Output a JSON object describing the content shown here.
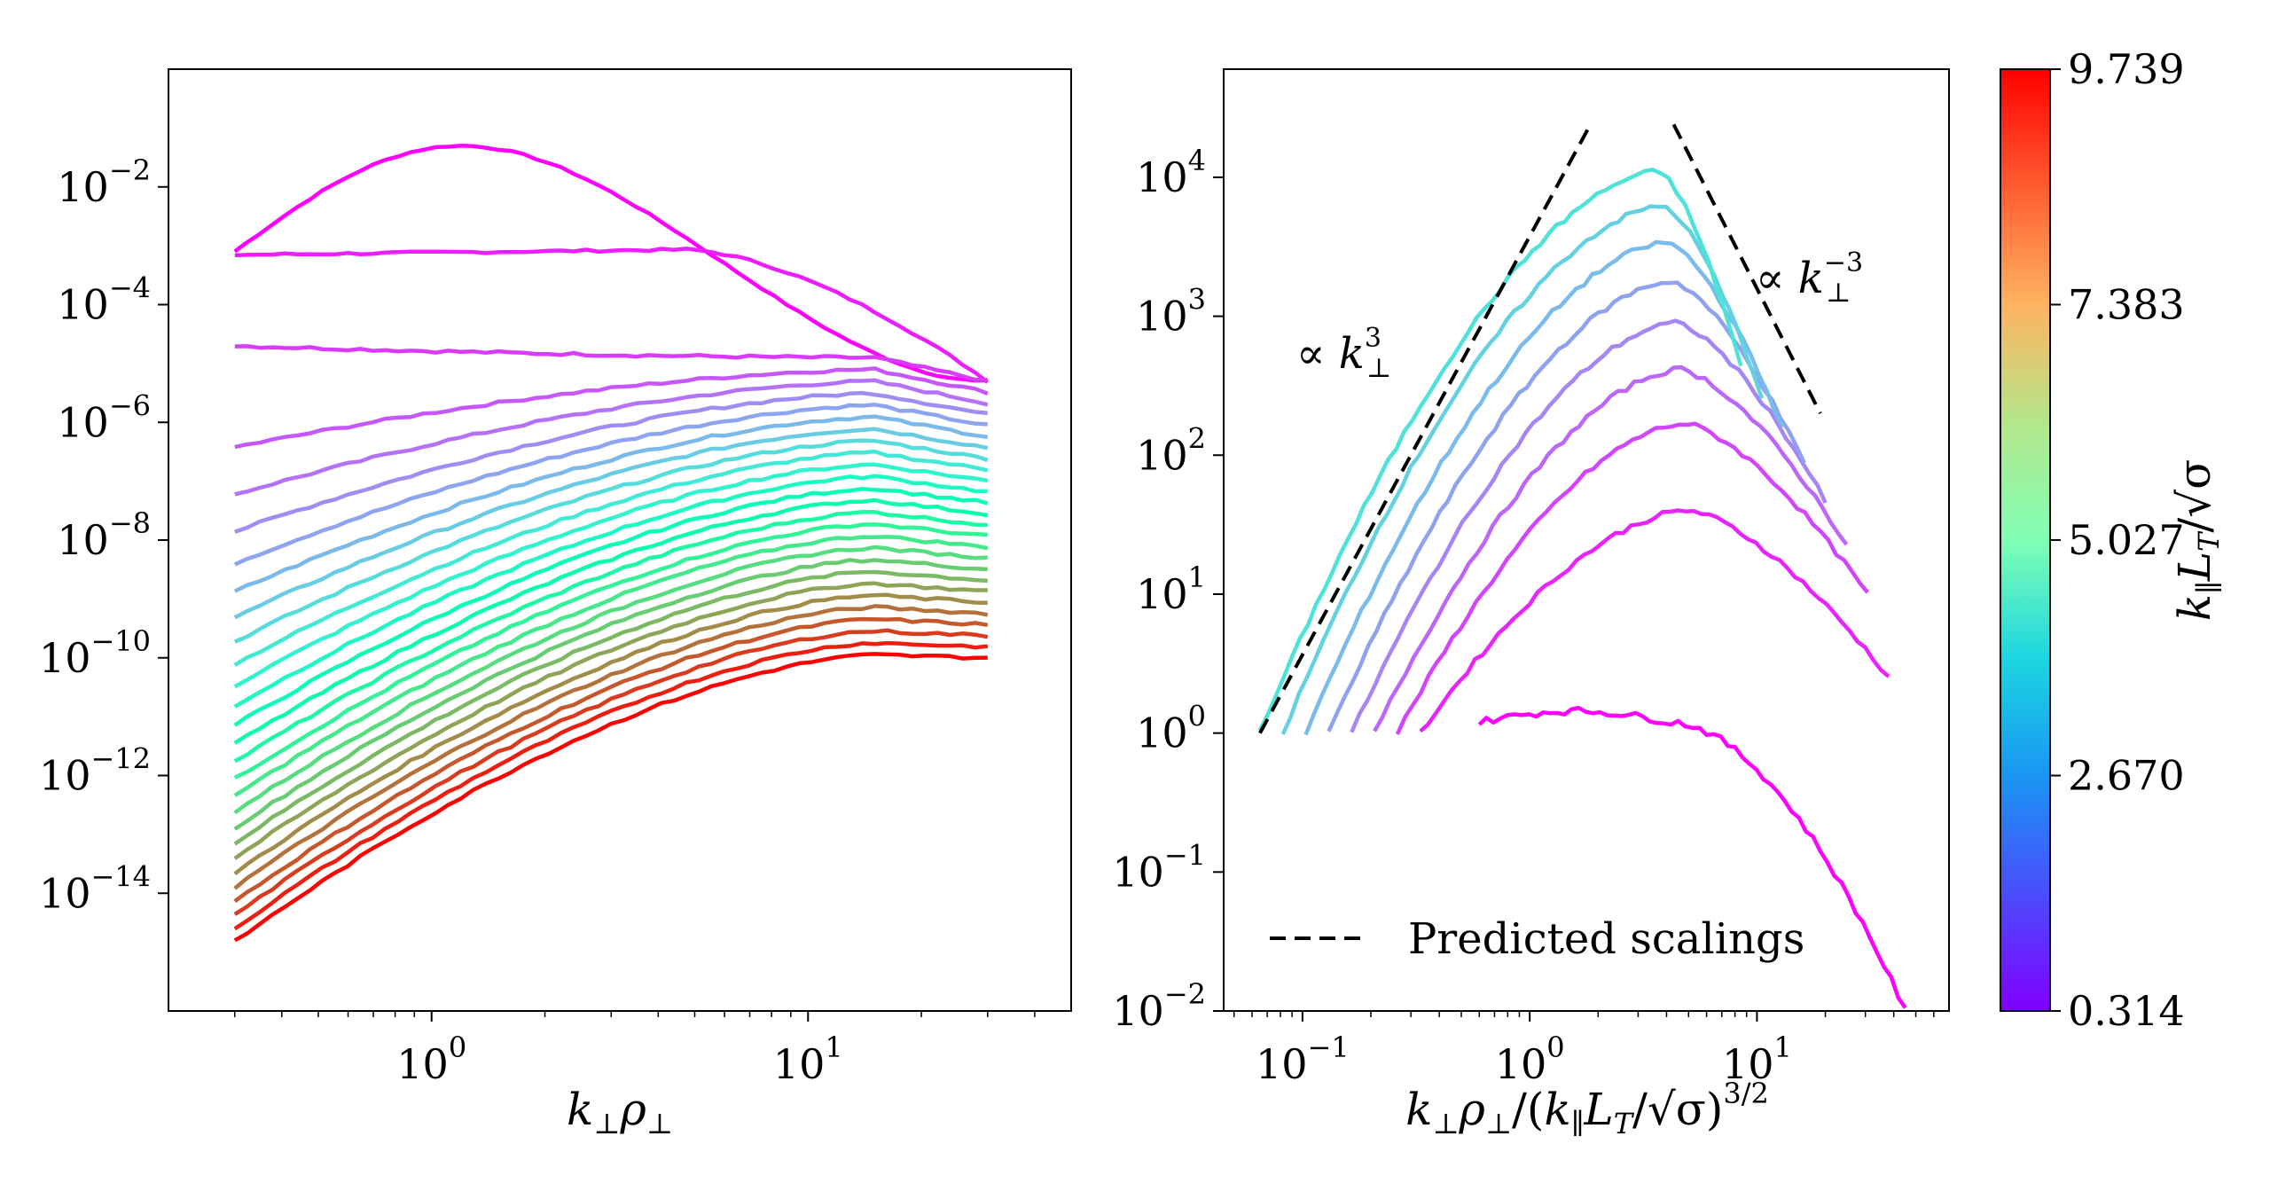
{
  "figure": {
    "background": "#ffffff",
    "line_colormap": "rainbow"
  },
  "chart_data": [
    {
      "type": "line",
      "panel": "left",
      "title": "",
      "xlabel": "k⊥ρ⊥",
      "ylabel": "",
      "xscale": "log",
      "yscale": "log",
      "xlim": [
        0.2,
        50
      ],
      "ylim": [
        1e-16,
        1
      ],
      "x_ticks": [
        {
          "value": 1,
          "base": "10",
          "exp": "0"
        },
        {
          "value": 10,
          "base": "10",
          "exp": "1"
        }
      ],
      "y_ticks": [
        {
          "value": 0.01,
          "base": "10",
          "exp": "−2"
        },
        {
          "value": 0.0001,
          "base": "10",
          "exp": "−4"
        },
        {
          "value": 1e-06,
          "base": "10",
          "exp": "−6"
        },
        {
          "value": 1e-08,
          "base": "10",
          "exp": "−8"
        },
        {
          "value": 1e-10,
          "base": "10",
          "exp": "−10"
        },
        {
          "value": 1e-12,
          "base": "10",
          "exp": "−12"
        },
        {
          "value": 1e-14,
          "base": "10",
          "exp": "−14"
        }
      ],
      "series_count": 28,
      "series_note": "One spectrum per k∥L_T/√σ value, colored by colorbar (0.314 purple → 9.739 red)",
      "series_reference": {
        "x_range": [
          0.3,
          30
        ],
        "first_series": {
          "start": 0.0008,
          "peak_x": 1.2,
          "peak": 0.05,
          "end": 5e-06
        },
        "second_series": {
          "start": 0.0007,
          "end": 5e-06
        },
        "third_series": {
          "start": 5e-06,
          "end": 5e-06
        },
        "last_series": {
          "start": 1.5e-15,
          "end": 1e-10
        }
      }
    },
    {
      "type": "line",
      "panel": "right",
      "title": "",
      "xlabel": "k⊥ρ⊥/(k∥L_T/√σ)^3/2",
      "ylabel": "",
      "xscale": "log",
      "yscale": "log",
      "xlim": [
        0.045,
        70
      ],
      "ylim": [
        0.01,
        60000
      ],
      "x_ticks": [
        {
          "value": 0.1,
          "base": "10",
          "exp": "−1"
        },
        {
          "value": 1,
          "base": "10",
          "exp": "0"
        },
        {
          "value": 10,
          "base": "10",
          "exp": "1"
        }
      ],
      "y_ticks": [
        {
          "value": 10000,
          "base": "10",
          "exp": "4"
        },
        {
          "value": 1000,
          "base": "10",
          "exp": "3"
        },
        {
          "value": 100,
          "base": "10",
          "exp": "2"
        },
        {
          "value": 10,
          "base": "10",
          "exp": "1"
        },
        {
          "value": 1,
          "base": "10",
          "exp": "0"
        },
        {
          "value": 0.1,
          "base": "10",
          "exp": "−1"
        },
        {
          "value": 0.01,
          "base": "10",
          "exp": "−2"
        }
      ],
      "series_count": 9,
      "series_note": "Rescaled spectra for lowest 9 k∥ values, colors from colorbar",
      "series_reference": {
        "lowest_k_series": {
          "x_range": [
            0.6,
            45
          ],
          "level": 1.2,
          "end": 0.01
        },
        "highest_k_series": {
          "x_range": [
            0.065,
            8.5
          ],
          "peak_x": 3.7,
          "peak": 11000
        }
      },
      "reference_lines": [
        {
          "name": "∝ k⊥³",
          "x": [
            0.065,
            1.85
          ],
          "y": [
            1,
            24000
          ],
          "style": "dashed",
          "color": "#000000"
        },
        {
          "name": "∝ k⊥⁻³",
          "x": [
            4.3,
            19
          ],
          "y": [
            24000,
            200
          ],
          "style": "dashed",
          "color": "#000000"
        }
      ],
      "annotations": {
        "slope_pos": {
          "prefix": "∝ ",
          "base": "k",
          "sup": "3",
          "sub": "⊥"
        },
        "slope_neg": {
          "prefix": "∝ ",
          "base": "k",
          "sup": "−3",
          "sub": "⊥"
        }
      },
      "legend": {
        "label": "Predicted scalings",
        "location": "lower-left",
        "line_style": "dashed",
        "color": "#000000"
      }
    }
  ],
  "colorbar": {
    "label": "k∥L_T/√σ",
    "min": 0.314,
    "max": 9.739,
    "tick_labels": [
      "9.739",
      "7.383",
      "5.027",
      "2.670",
      "0.314"
    ],
    "tick_values": [
      9.739,
      7.383,
      5.027,
      2.67,
      0.314
    ],
    "colormap": "rainbow"
  }
}
